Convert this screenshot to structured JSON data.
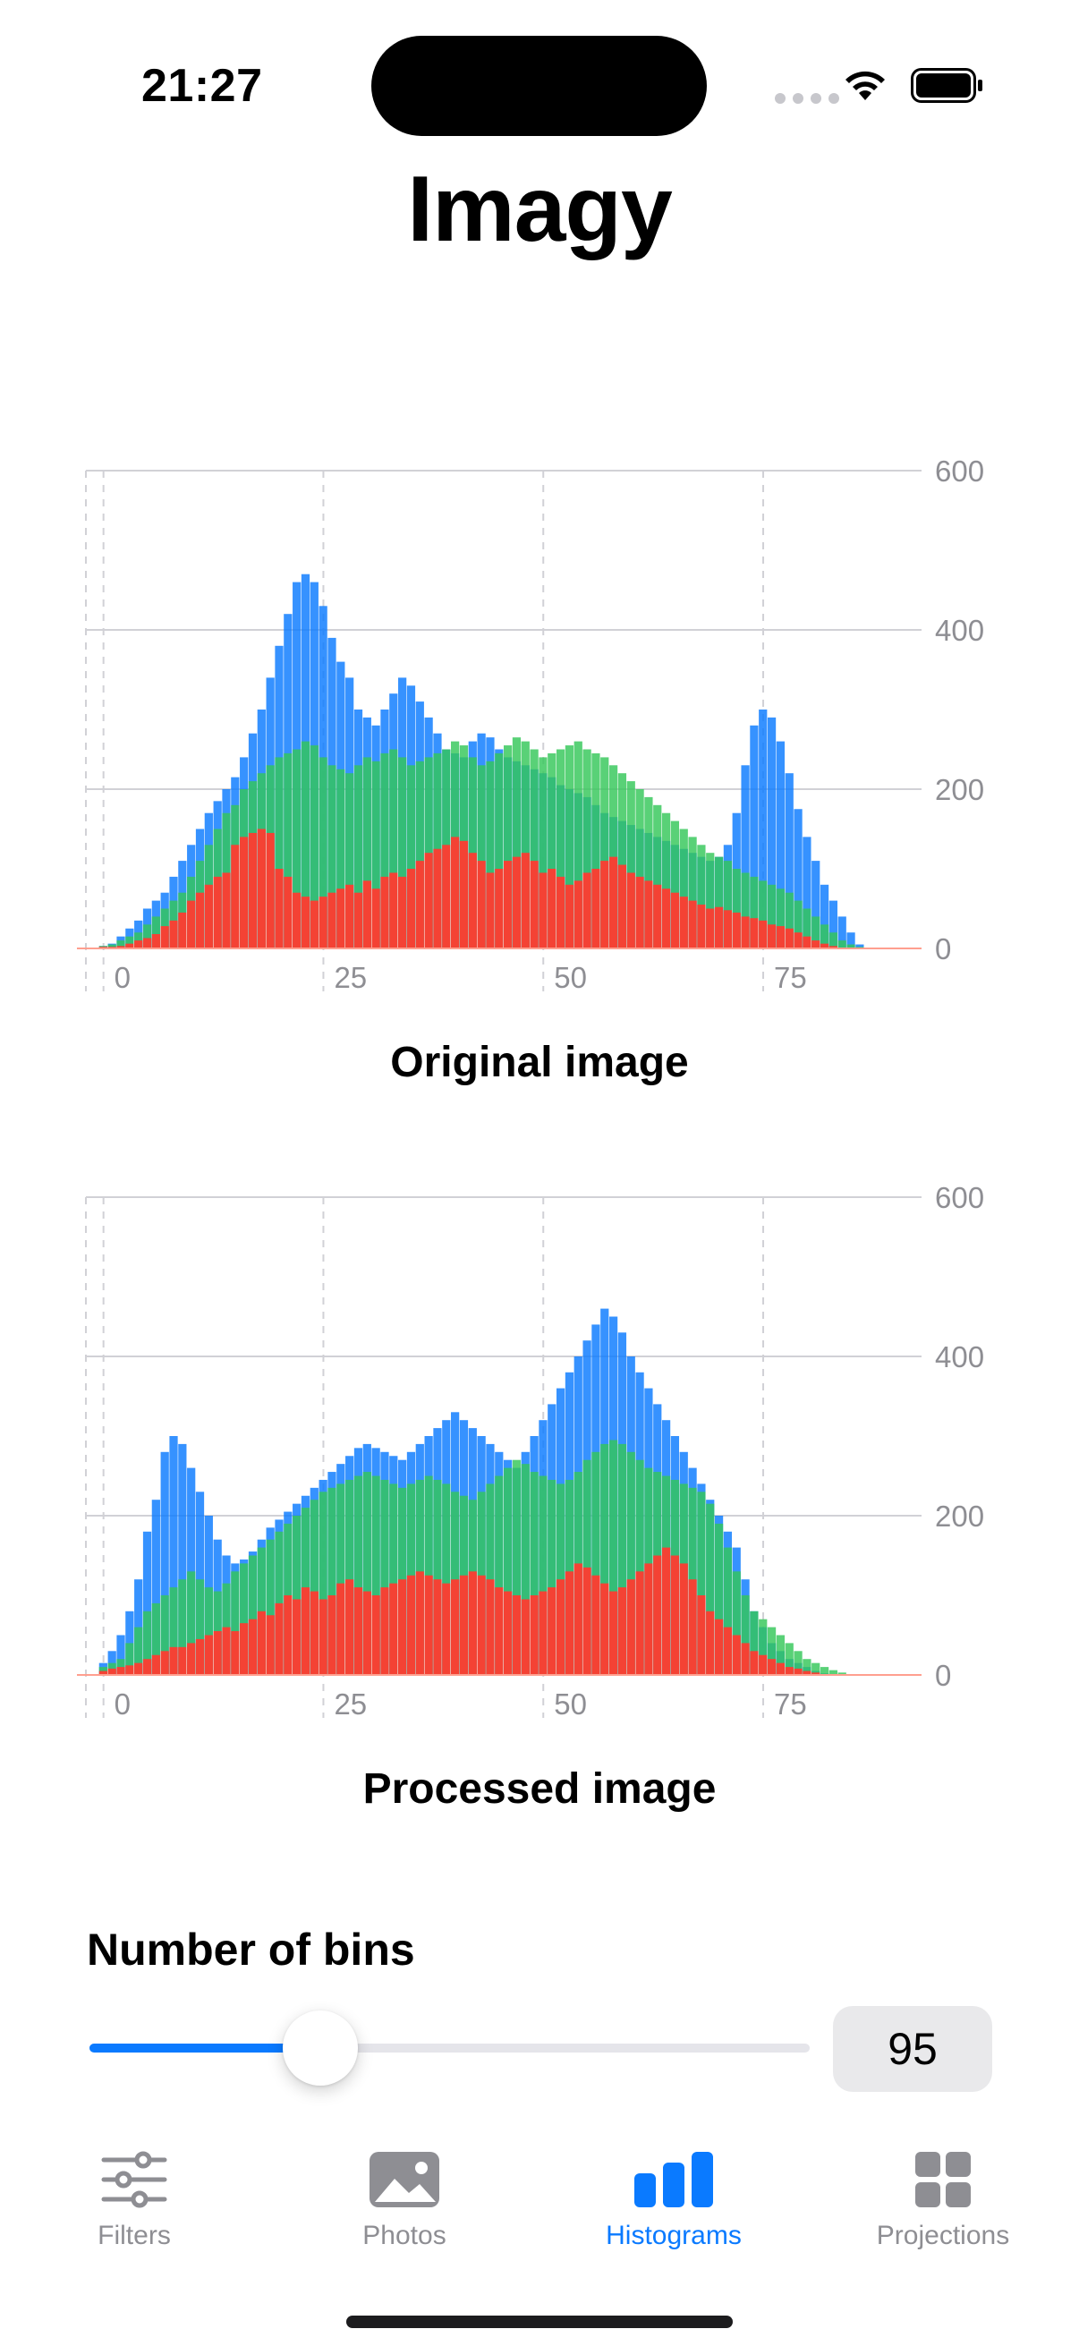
{
  "status_bar": {
    "time": "21:27"
  },
  "app": {
    "title": "Imagy"
  },
  "colors": {
    "red": "#ff3b30",
    "green": "#34c759",
    "blue": "#0a7aff",
    "accent": "#0a7aff"
  },
  "charts": [
    {
      "caption": "Original image"
    },
    {
      "caption": "Processed image"
    }
  ],
  "chart_data": [
    {
      "type": "bar",
      "title": "Original image",
      "x_ticks": [
        "0",
        "25",
        "50",
        "75"
      ],
      "y_ticks": [
        "0",
        "200",
        "400",
        "600"
      ],
      "xlim": [
        -2,
        93
      ],
      "ylim": [
        0,
        600
      ],
      "grid": true,
      "legend": "none",
      "x": [
        0,
        1,
        2,
        3,
        4,
        5,
        6,
        7,
        8,
        9,
        10,
        11,
        12,
        13,
        14,
        15,
        16,
        17,
        18,
        19,
        20,
        21,
        22,
        23,
        24,
        25,
        26,
        27,
        28,
        29,
        30,
        31,
        32,
        33,
        34,
        35,
        36,
        37,
        38,
        39,
        40,
        41,
        42,
        43,
        44,
        45,
        46,
        47,
        48,
        49,
        50,
        51,
        52,
        53,
        54,
        55,
        56,
        57,
        58,
        59,
        60,
        61,
        62,
        63,
        64,
        65,
        66,
        67,
        68,
        69,
        70,
        71,
        72,
        73,
        74,
        75,
        76,
        77,
        78,
        79,
        80,
        81,
        82,
        83,
        84,
        85,
        86,
        87,
        88,
        89,
        90,
        91,
        92,
        93,
        94
      ],
      "series": [
        {
          "color": "red",
          "values": [
            2,
            2,
            3,
            6,
            10,
            13,
            18,
            28,
            35,
            45,
            60,
            70,
            80,
            90,
            95,
            130,
            140,
            145,
            150,
            145,
            100,
            90,
            70,
            65,
            60,
            65,
            70,
            75,
            80,
            70,
            85,
            75,
            90,
            95,
            90,
            100,
            110,
            120,
            125,
            130,
            140,
            135,
            120,
            110,
            95,
            100,
            110,
            115,
            120,
            110,
            95,
            100,
            90,
            80,
            85,
            95,
            100,
            110,
            115,
            105,
            95,
            90,
            85,
            80,
            75,
            70,
            65,
            60,
            55,
            50,
            52,
            48,
            45,
            40,
            38,
            35,
            30,
            28,
            25,
            20,
            15,
            10,
            6,
            3,
            1,
            0,
            0,
            0,
            0,
            0,
            0,
            0,
            0,
            0,
            0
          ]
        },
        {
          "color": "green",
          "values": [
            3,
            5,
            10,
            15,
            20,
            30,
            40,
            50,
            60,
            70,
            90,
            110,
            130,
            150,
            170,
            180,
            200,
            210,
            220,
            230,
            240,
            245,
            250,
            260,
            255,
            240,
            230,
            225,
            220,
            230,
            240,
            235,
            245,
            250,
            240,
            230,
            235,
            240,
            245,
            250,
            260,
            255,
            240,
            230,
            235,
            245,
            255,
            265,
            260,
            250,
            240,
            245,
            250,
            255,
            260,
            250,
            245,
            240,
            230,
            220,
            210,
            200,
            190,
            180,
            170,
            160,
            150,
            140,
            130,
            120,
            115,
            110,
            100,
            95,
            90,
            85,
            80,
            75,
            70,
            60,
            50,
            40,
            30,
            20,
            10,
            5,
            2,
            0,
            0,
            0,
            0,
            0,
            0,
            0,
            0
          ]
        },
        {
          "color": "blue",
          "values": [
            3,
            6,
            15,
            25,
            35,
            50,
            60,
            70,
            90,
            110,
            130,
            150,
            170,
            185,
            200,
            215,
            240,
            270,
            300,
            340,
            380,
            420,
            460,
            470,
            460,
            430,
            390,
            360,
            340,
            300,
            290,
            280,
            300,
            320,
            340,
            330,
            310,
            290,
            270,
            250,
            245,
            240,
            260,
            270,
            265,
            250,
            240,
            235,
            230,
            225,
            220,
            215,
            205,
            200,
            195,
            190,
            180,
            170,
            165,
            160,
            155,
            150,
            145,
            140,
            135,
            130,
            125,
            120,
            115,
            110,
            115,
            130,
            170,
            230,
            280,
            300,
            290,
            260,
            220,
            175,
            140,
            110,
            80,
            60,
            40,
            20,
            5,
            0,
            0,
            0,
            0,
            0,
            0,
            0,
            0
          ]
        }
      ]
    },
    {
      "type": "bar",
      "title": "Processed image",
      "x_ticks": [
        "0",
        "25",
        "50",
        "75"
      ],
      "y_ticks": [
        "0",
        "200",
        "400",
        "600"
      ],
      "xlim": [
        -2,
        93
      ],
      "ylim": [
        0,
        600
      ],
      "grid": true,
      "legend": "none",
      "x": [
        0,
        1,
        2,
        3,
        4,
        5,
        6,
        7,
        8,
        9,
        10,
        11,
        12,
        13,
        14,
        15,
        16,
        17,
        18,
        19,
        20,
        21,
        22,
        23,
        24,
        25,
        26,
        27,
        28,
        29,
        30,
        31,
        32,
        33,
        34,
        35,
        36,
        37,
        38,
        39,
        40,
        41,
        42,
        43,
        44,
        45,
        46,
        47,
        48,
        49,
        50,
        51,
        52,
        53,
        54,
        55,
        56,
        57,
        58,
        59,
        60,
        61,
        62,
        63,
        64,
        65,
        66,
        67,
        68,
        69,
        70,
        71,
        72,
        73,
        74,
        75,
        76,
        77,
        78,
        79,
        80,
        81,
        82,
        83,
        84,
        85,
        86,
        87,
        88,
        89,
        90,
        91,
        92,
        93,
        94
      ],
      "series": [
        {
          "color": "red",
          "values": [
            5,
            8,
            10,
            12,
            15,
            20,
            25,
            30,
            35,
            35,
            40,
            45,
            50,
            55,
            60,
            55,
            65,
            70,
            80,
            75,
            90,
            100,
            95,
            110,
            105,
            95,
            100,
            115,
            120,
            110,
            105,
            100,
            110,
            115,
            120,
            125,
            130,
            125,
            120,
            115,
            120,
            125,
            130,
            125,
            120,
            110,
            105,
            100,
            95,
            100,
            105,
            110,
            120,
            130,
            140,
            135,
            125,
            115,
            105,
            110,
            120,
            130,
            140,
            150,
            160,
            150,
            140,
            120,
            100,
            80,
            70,
            60,
            50,
            40,
            30,
            25,
            20,
            15,
            10,
            8,
            5,
            3,
            1,
            0,
            0,
            0,
            0,
            0,
            0,
            0,
            0,
            0,
            0,
            0,
            0
          ]
        },
        {
          "color": "green",
          "values": [
            10,
            15,
            20,
            40,
            60,
            80,
            90,
            100,
            110,
            120,
            130,
            120,
            110,
            105,
            115,
            130,
            140,
            150,
            160,
            170,
            180,
            190,
            200,
            210,
            220,
            230,
            235,
            240,
            245,
            250,
            255,
            250,
            245,
            240,
            235,
            240,
            245,
            250,
            245,
            240,
            230,
            225,
            220,
            230,
            240,
            250,
            260,
            270,
            265,
            255,
            250,
            245,
            240,
            245,
            255,
            270,
            280,
            290,
            295,
            290,
            280,
            270,
            260,
            255,
            250,
            245,
            240,
            235,
            230,
            215,
            190,
            160,
            130,
            100,
            80,
            70,
            60,
            50,
            40,
            30,
            20,
            15,
            10,
            6,
            3,
            1,
            0,
            0,
            0,
            0,
            0,
            0,
            0,
            0,
            0
          ]
        },
        {
          "color": "blue",
          "values": [
            15,
            30,
            50,
            80,
            120,
            180,
            220,
            280,
            300,
            290,
            260,
            230,
            200,
            170,
            150,
            140,
            145,
            155,
            170,
            185,
            195,
            205,
            215,
            225,
            235,
            245,
            255,
            265,
            275,
            285,
            290,
            285,
            280,
            275,
            270,
            280,
            290,
            300,
            310,
            320,
            330,
            320,
            310,
            300,
            290,
            280,
            270,
            260,
            280,
            300,
            320,
            340,
            360,
            380,
            400,
            420,
            440,
            460,
            450,
            430,
            400,
            380,
            360,
            340,
            320,
            300,
            280,
            260,
            240,
            220,
            200,
            180,
            160,
            120,
            80,
            60,
            40,
            30,
            20,
            15,
            10,
            5,
            2,
            0,
            0,
            0,
            0,
            0,
            0,
            0,
            0,
            0,
            0,
            0,
            0
          ]
        }
      ]
    }
  ],
  "bins": {
    "label": "Number of bins",
    "value": "95",
    "fraction": 0.32
  },
  "tabs": [
    {
      "label": "Filters",
      "icon": "sliders-icon",
      "active": false
    },
    {
      "label": "Photos",
      "icon": "photo-icon",
      "active": false
    },
    {
      "label": "Histograms",
      "icon": "bar-chart-icon",
      "active": true
    },
    {
      "label": "Projections",
      "icon": "grid-icon",
      "active": false
    }
  ]
}
